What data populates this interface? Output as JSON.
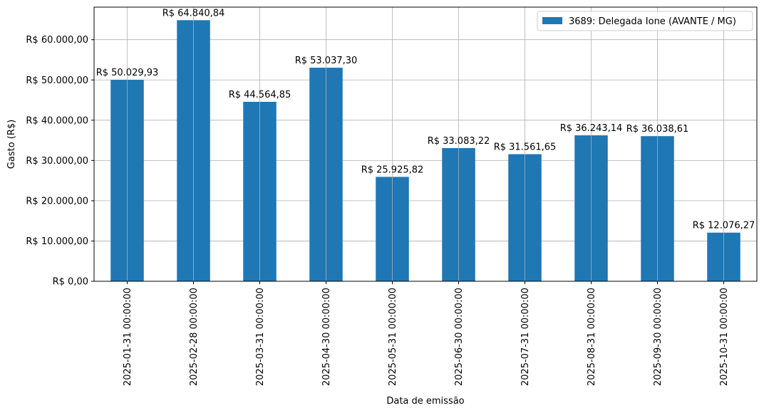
{
  "chart_data": {
    "type": "bar",
    "categories": [
      "2025-01-31 00:00:00",
      "2025-02-28 00:00:00",
      "2025-03-31 00:00:00",
      "2025-04-30 00:00:00",
      "2025-05-31 00:00:00",
      "2025-06-30 00:00:00",
      "2025-07-31 00:00:00",
      "2025-08-31 00:00:00",
      "2025-09-30 00:00:00",
      "2025-10-31 00:00:00"
    ],
    "series": [
      {
        "name": "3689: Delegada Ione (AVANTE / MG)",
        "color": "#1f77b4",
        "values": [
          50029.93,
          64840.84,
          44564.85,
          53037.3,
          25925.82,
          33083.22,
          31561.65,
          36243.14,
          36038.61,
          12076.27
        ],
        "labels": [
          "R$ 50.029,93",
          "R$ 64.840,84",
          "R$ 44.564,85",
          "R$ 53.037,30",
          "R$ 25.925,82",
          "R$ 33.083,22",
          "R$ 31.561,65",
          "R$ 36.243,14",
          "R$ 36.038,61",
          "R$ 12.076,27"
        ]
      }
    ],
    "title": "",
    "xlabel": "Data de emissão",
    "ylabel": "Gasto (R$)",
    "ylim": [
      0,
      68082.88
    ],
    "yticks": [
      0,
      10000,
      20000,
      30000,
      40000,
      50000,
      60000
    ],
    "ytick_labels": [
      "R$ 0,00",
      "R$ 10.000,00",
      "R$ 20.000,00",
      "R$ 30.000,00",
      "R$ 40.000,00",
      "R$ 50.000,00",
      "R$ 60.000,00"
    ],
    "grid": true,
    "legend_position": "top-right"
  }
}
